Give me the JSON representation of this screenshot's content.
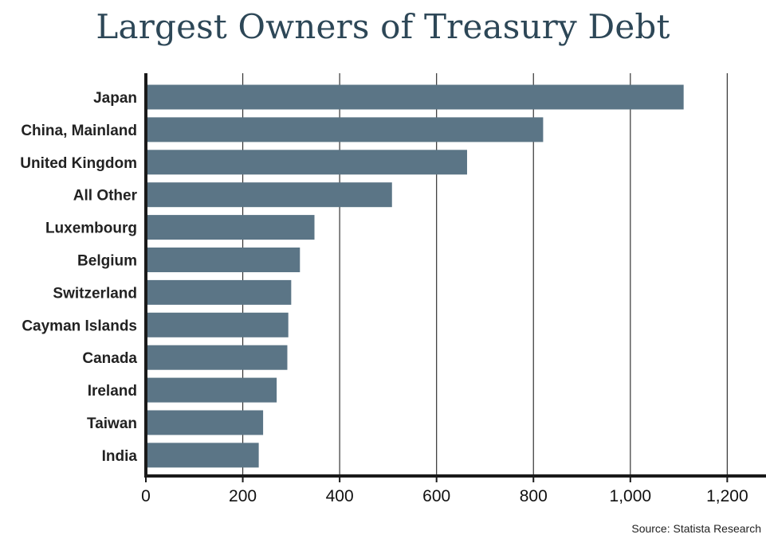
{
  "chart_data": {
    "type": "bar",
    "orientation": "horizontal",
    "title": "Largest Owners of Treasury Debt",
    "categories": [
      "Japan",
      "China, Mainland",
      "United Kingdom",
      "All Other",
      "Luxembourg",
      "Belgium",
      "Switzerland",
      "Cayman Islands",
      "Canada",
      "Ireland",
      "Taiwan",
      "India"
    ],
    "values": [
      1110,
      820,
      663,
      508,
      348,
      318,
      300,
      294,
      292,
      270,
      242,
      233
    ],
    "xlim": [
      0,
      1280
    ],
    "xticks": [
      0,
      200,
      400,
      600,
      800,
      1000,
      1200
    ],
    "xtick_labels": [
      "0",
      "200",
      "400",
      "600",
      "800",
      "1,000",
      "1,200"
    ],
    "grid": "vertical",
    "bar_color": "#5b7586",
    "source": "Source: Statista Research"
  }
}
